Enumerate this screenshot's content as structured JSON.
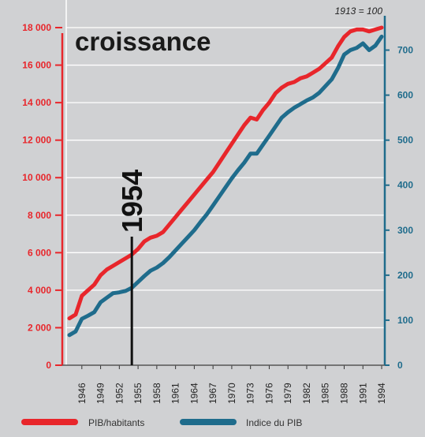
{
  "chart_data": {
    "type": "line",
    "title": "croissance",
    "note": "1913 = 100",
    "annotation": {
      "label": "1954",
      "x": 1954
    },
    "x_ticks": [
      1946,
      1949,
      1952,
      1955,
      1958,
      1961,
      1964,
      1967,
      1970,
      1973,
      1976,
      1979,
      1982,
      1985,
      1988,
      1991,
      1994
    ],
    "xlim": [
      1943.5,
      1994.5
    ],
    "y_left": {
      "ylim": [
        0,
        18000
      ],
      "ticks": [
        0,
        2000,
        4000,
        6000,
        8000,
        10000,
        12000,
        14000,
        16000,
        18000
      ],
      "tick_labels": [
        "0",
        "2 000",
        "4 000",
        "6 000",
        "8 000",
        "10 000",
        "12 000",
        "14 000",
        "16 000",
        "18 000"
      ]
    },
    "y_right": {
      "ylim": [
        0,
        750
      ],
      "ticks": [
        0,
        100,
        200,
        300,
        400,
        500,
        600,
        700
      ],
      "tick_labels": [
        "0",
        "100",
        "200",
        "300",
        "400",
        "500",
        "600",
        "700"
      ]
    },
    "grid": true,
    "legend_position": "bottom",
    "series": [
      {
        "name": "PIB/habitants",
        "axis": "left",
        "color": "#e8262b",
        "x": [
          1944,
          1945,
          1946,
          1947,
          1948,
          1949,
          1950,
          1951,
          1952,
          1953,
          1954,
          1955,
          1956,
          1957,
          1958,
          1959,
          1960,
          1961,
          1962,
          1963,
          1964,
          1965,
          1966,
          1967,
          1968,
          1969,
          1970,
          1971,
          1972,
          1973,
          1974,
          1975,
          1976,
          1977,
          1978,
          1979,
          1980,
          1981,
          1982,
          1983,
          1984,
          1985,
          1986,
          1987,
          1988,
          1989,
          1990,
          1991,
          1992,
          1993,
          1994
        ],
        "values": [
          2500,
          2700,
          3700,
          4000,
          4300,
          4800,
          5100,
          5300,
          5500,
          5700,
          5900,
          6200,
          6600,
          6800,
          6900,
          7100,
          7500,
          7900,
          8300,
          8700,
          9100,
          9500,
          9900,
          10300,
          10800,
          11300,
          11800,
          12300,
          12800,
          13200,
          13100,
          13600,
          14000,
          14500,
          14800,
          15000,
          15100,
          15300,
          15400,
          15600,
          15800,
          16100,
          16400,
          17000,
          17500,
          17800,
          17900,
          17900,
          17800,
          17900,
          18000
        ]
      },
      {
        "name": "Indice du PIB",
        "axis": "right",
        "color": "#1f6c8c",
        "x": [
          1944,
          1945,
          1946,
          1947,
          1948,
          1949,
          1950,
          1951,
          1952,
          1953,
          1954,
          1955,
          1956,
          1957,
          1958,
          1959,
          1960,
          1961,
          1962,
          1963,
          1964,
          1965,
          1966,
          1967,
          1968,
          1969,
          1970,
          1971,
          1972,
          1973,
          1974,
          1975,
          1976,
          1977,
          1978,
          1979,
          1980,
          1981,
          1982,
          1983,
          1984,
          1985,
          1986,
          1987,
          1988,
          1989,
          1990,
          1991,
          1992,
          1993,
          1994
        ],
        "values": [
          67,
          75,
          103,
          110,
          118,
          140,
          150,
          160,
          162,
          165,
          172,
          185,
          198,
          210,
          217,
          227,
          240,
          255,
          270,
          285,
          300,
          318,
          335,
          355,
          375,
          395,
          415,
          433,
          450,
          470,
          470,
          490,
          510,
          530,
          550,
          562,
          572,
          580,
          588,
          595,
          605,
          620,
          635,
          660,
          690,
          700,
          705,
          715,
          700,
          710,
          730
        ]
      }
    ]
  }
}
